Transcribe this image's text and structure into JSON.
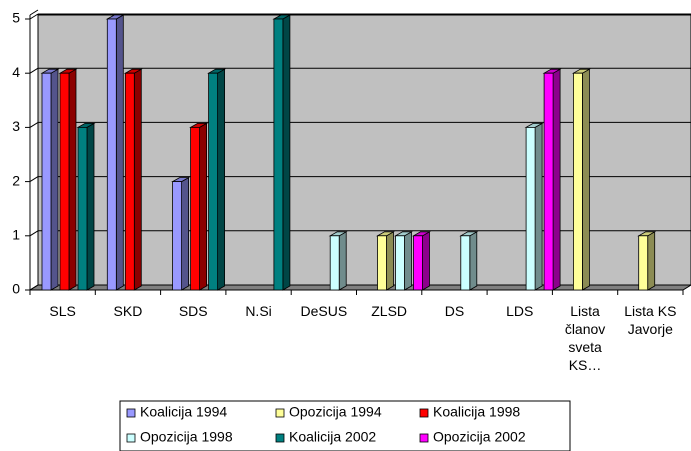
{
  "chart_data": {
    "type": "bar",
    "categories": [
      "SLS",
      "SKD",
      "SDS",
      "N.Si",
      "DeSUS",
      "ZLSD",
      "DS",
      "LDS",
      "Lista članov sveta KS…",
      "Lista KS Javorje"
    ],
    "series": [
      {
        "name": "Koalicija 1994",
        "color": "#9999ff",
        "values": [
          4,
          5,
          2,
          null,
          null,
          null,
          null,
          null,
          null,
          null
        ]
      },
      {
        "name": "Opozicija 1994",
        "color": "#ffff99",
        "values": [
          null,
          null,
          null,
          null,
          null,
          1,
          null,
          null,
          4,
          1
        ]
      },
      {
        "name": "Koalicija 1998",
        "color": "#ff0000",
        "values": [
          4,
          4,
          3,
          null,
          null,
          null,
          null,
          null,
          null,
          null
        ]
      },
      {
        "name": "Opozicija 1998",
        "color": "#ccffff",
        "values": [
          null,
          null,
          null,
          null,
          1,
          1,
          1,
          3,
          null,
          null
        ]
      },
      {
        "name": "Koalicija 2002",
        "color": "#008080",
        "values": [
          3,
          null,
          4,
          5,
          null,
          null,
          null,
          null,
          null,
          null
        ]
      },
      {
        "name": "Opozicija 2002",
        "color": "#ff00ff",
        "values": [
          null,
          null,
          null,
          null,
          null,
          1,
          null,
          4,
          null,
          null
        ]
      }
    ],
    "ylim": [
      0,
      5
    ],
    "yticks": [
      0,
      1,
      2,
      3,
      4,
      5
    ],
    "grid": true,
    "legend": "bottom"
  }
}
